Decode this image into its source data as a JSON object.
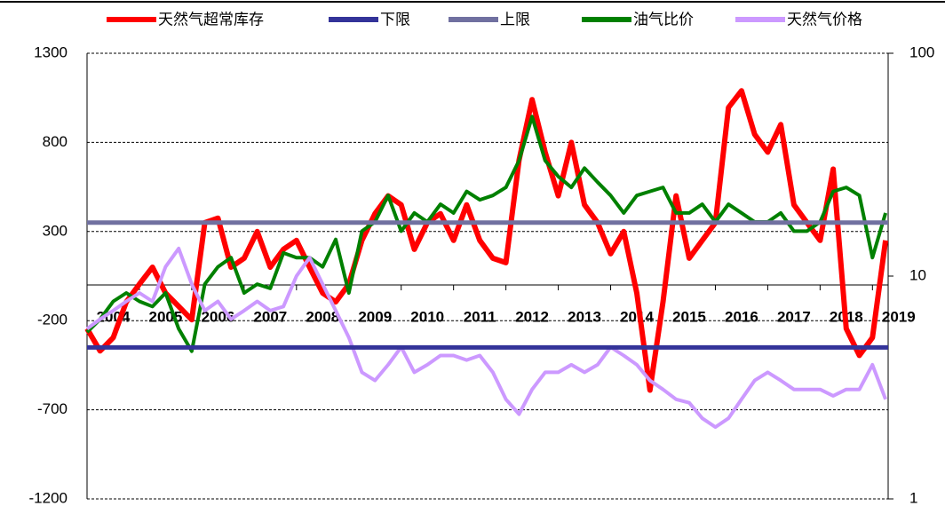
{
  "chart_data": {
    "type": "line",
    "x": [
      2004,
      2004.25,
      2004.5,
      2004.75,
      2005,
      2005.25,
      2005.5,
      2005.75,
      2006,
      2006.25,
      2006.5,
      2006.75,
      2007,
      2007.25,
      2007.5,
      2007.75,
      2008,
      2008.25,
      2008.5,
      2008.75,
      2009,
      2009.25,
      2009.5,
      2009.75,
      2010,
      2010.25,
      2010.5,
      2010.75,
      2011,
      2011.25,
      2011.5,
      2011.75,
      2012,
      2012.25,
      2012.5,
      2012.75,
      2013,
      2013.25,
      2013.5,
      2013.75,
      2014,
      2014.25,
      2014.5,
      2014.75,
      2015,
      2015.25,
      2015.5,
      2015.75,
      2016,
      2016.25,
      2016.5,
      2016.75,
      2017,
      2017.25,
      2017.5,
      2017.75,
      2018,
      2018.25,
      2018.5,
      2018.75,
      2019,
      2019.25
    ],
    "xlim": [
      2004,
      2019.3
    ],
    "xticks": [
      2004,
      2005,
      2006,
      2007,
      2008,
      2009,
      2010,
      2011,
      2012,
      2013,
      2014,
      2015,
      2016,
      2017,
      2018,
      2019
    ],
    "ylim": [
      -1200,
      1300
    ],
    "yticks": [
      -1200,
      -700,
      -200,
      300,
      800,
      1300
    ],
    "y2lim": [
      1,
      100
    ],
    "y2ticks": [
      1,
      10,
      100
    ],
    "y2_log": true,
    "grid": true,
    "series": [
      {
        "name": "天然气超常库存",
        "color": "#ff0000",
        "values": [
          -245,
          -370,
          -295,
          -95,
          5,
          100,
          -45,
          -120,
          -195,
          350,
          375,
          100,
          150,
          300,
          100,
          200,
          250,
          100,
          -45,
          -95,
          5,
          250,
          400,
          500,
          450,
          200,
          350,
          400,
          250,
          450,
          250,
          150,
          125,
          700,
          1040,
          745,
          500,
          800,
          450,
          350,
          175,
          300,
          -45,
          -590,
          -95,
          500,
          150,
          250,
          350,
          995,
          1090,
          845,
          745,
          900,
          450,
          350,
          250,
          650,
          -245,
          -395,
          -295,
          250
        ]
      },
      {
        "name": "下限",
        "color": "#333399",
        "value": -350
      },
      {
        "name": "上限",
        "color": "#7070a0",
        "value": 350
      },
      {
        "name": "油气比价",
        "color": "#008000",
        "axis": "y2",
        "values": [
          5.6,
          6.4,
          7.7,
          8.4,
          7.7,
          7.3,
          8.4,
          5.8,
          4.6,
          9.2,
          11,
          12.1,
          8.4,
          9.2,
          8.8,
          12.7,
          12.1,
          12.1,
          11,
          14.6,
          8.4,
          15.9,
          17.5,
          23,
          15.9,
          19.2,
          17.5,
          21,
          19.2,
          24,
          22,
          23,
          25,
          33,
          52,
          33,
          28,
          25,
          30.5,
          26.4,
          23,
          19.2,
          23,
          24,
          25,
          19.2,
          19.2,
          21,
          17.5,
          21,
          19.2,
          17.5,
          17.5,
          19.2,
          15.9,
          15.9,
          17.5,
          24,
          25,
          23,
          12.1,
          19.2
        ]
      },
      {
        "name": "天然气价格",
        "color": "#cc99ff",
        "axis": "y2",
        "values": [
          5.8,
          6.4,
          7,
          7.7,
          8.4,
          7.7,
          11,
          13.3,
          9.2,
          7,
          7.7,
          6.4,
          7,
          7.7,
          7,
          7.3,
          10,
          12.1,
          9.2,
          7,
          5.3,
          3.7,
          3.4,
          4,
          4.8,
          3.7,
          4,
          4.4,
          4.4,
          4.2,
          4.4,
          3.7,
          2.8,
          2.4,
          3.1,
          3.7,
          3.7,
          4,
          3.7,
          4,
          4.8,
          4.4,
          4,
          3.4,
          3.1,
          2.8,
          2.7,
          2.3,
          2.1,
          2.3,
          2.8,
          3.4,
          3.7,
          3.4,
          3.1,
          3.1,
          3.1,
          2.9,
          3.1,
          3.1,
          4,
          2.8
        ]
      }
    ]
  }
}
